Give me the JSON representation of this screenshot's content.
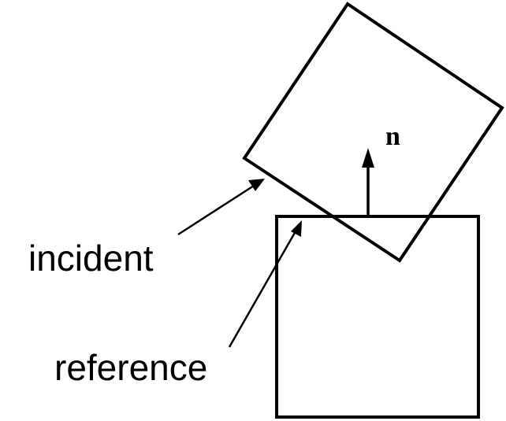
{
  "labels": {
    "incident": "incident",
    "reference": "reference",
    "normal": "n"
  },
  "colors": {
    "stroke": "#000000",
    "background": "#ffffff"
  }
}
